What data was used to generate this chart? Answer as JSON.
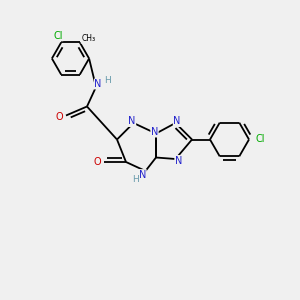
{
  "bg_color": "#f0f0f0",
  "atom_colors": {
    "C": "#000000",
    "N": "#2222cc",
    "O": "#cc0000",
    "Cl": "#00aa00",
    "H": "#6699aa"
  },
  "bond_color": "#000000",
  "bond_lw": 1.3,
  "dbo": 0.12
}
